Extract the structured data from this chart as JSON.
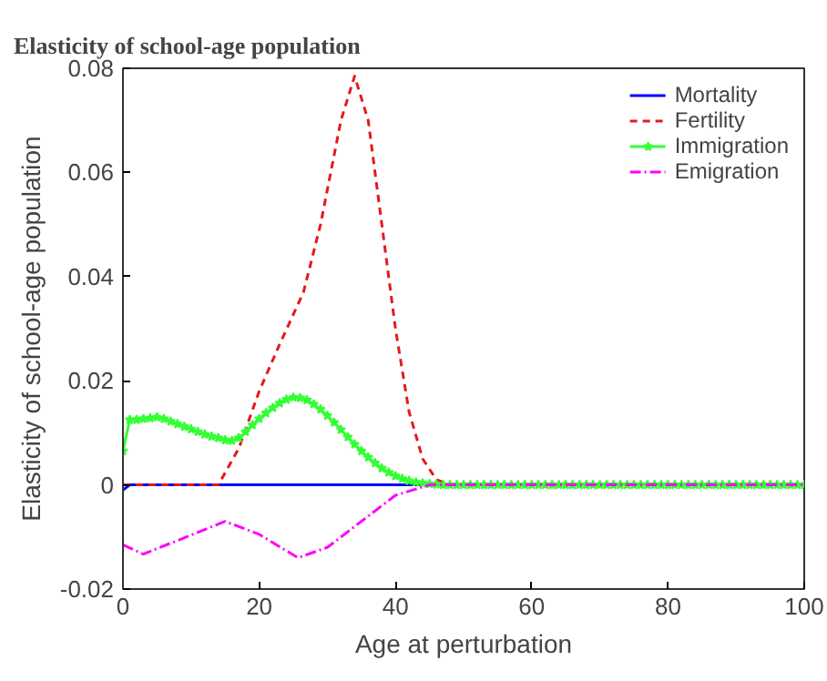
{
  "chart_data": {
    "type": "line",
    "title": "Elasticity of school-age population",
    "xlabel": "Age at perturbation",
    "ylabel": "Elasticity of school-age population",
    "xlim": [
      0,
      100
    ],
    "ylim": [
      -0.02,
      0.08
    ],
    "xticks": [
      0,
      20,
      40,
      60,
      80,
      100
    ],
    "yticks": [
      -0.02,
      0,
      0.02,
      0.04,
      0.06,
      0.08
    ],
    "grid": false,
    "legend": "top right",
    "series": [
      {
        "name": "Mortality",
        "color": "#0000ff",
        "line_style": "solid",
        "marker": "none",
        "x": [
          0,
          1,
          100
        ],
        "values": [
          -0.001,
          0,
          0
        ]
      },
      {
        "name": "Fertility",
        "color": "#e31a1c",
        "line_style": "dashed",
        "marker": "none",
        "x": [
          0,
          14,
          17,
          20,
          23,
          26.5,
          29,
          32,
          34,
          36,
          38,
          40,
          42,
          44,
          46,
          48,
          100
        ],
        "values": [
          0,
          0,
          0.007,
          0.018,
          0.027,
          0.037,
          0.05,
          0.07,
          0.0785,
          0.07,
          0.05,
          0.03,
          0.014,
          0.005,
          0.001,
          0,
          0
        ]
      },
      {
        "name": "Immigration",
        "color": "#33ff33",
        "line_style": "solid",
        "marker": "star",
        "x": [
          0,
          1,
          2,
          3,
          4,
          5,
          6,
          7,
          8,
          9,
          10,
          11,
          12,
          13,
          14,
          15,
          16,
          17,
          18,
          19,
          20,
          21,
          22,
          23,
          24,
          25,
          26,
          27,
          28,
          29,
          30,
          31,
          32,
          33,
          34,
          35,
          36,
          37,
          38,
          39,
          40,
          41,
          42,
          43,
          44,
          45,
          46,
          47,
          48,
          49,
          50,
          51,
          52,
          53,
          54,
          55,
          56,
          57,
          58,
          59,
          60,
          61,
          62,
          63,
          64,
          65,
          66,
          67,
          68,
          69,
          70,
          71,
          72,
          73,
          74,
          75,
          76,
          77,
          78,
          79,
          80,
          81,
          82,
          83,
          84,
          85,
          86,
          87,
          88,
          89,
          90,
          91,
          92,
          93,
          94,
          95,
          96,
          97,
          98,
          99,
          100
        ],
        "values": [
          0.0065,
          0.0125,
          0.0125,
          0.0127,
          0.0128,
          0.013,
          0.0127,
          0.0122,
          0.0117,
          0.0112,
          0.0107,
          0.0102,
          0.0097,
          0.0093,
          0.009,
          0.0086,
          0.0085,
          0.009,
          0.0102,
          0.0115,
          0.0127,
          0.0138,
          0.0148,
          0.0157,
          0.0164,
          0.0168,
          0.0167,
          0.0163,
          0.0155,
          0.0145,
          0.0133,
          0.012,
          0.0106,
          0.0092,
          0.0078,
          0.0065,
          0.0053,
          0.0042,
          0.0032,
          0.0024,
          0.0017,
          0.0012,
          0.0008,
          0.0005,
          0.0003,
          0.0002,
          0.0001,
          0,
          0,
          0,
          0,
          0,
          0,
          0,
          0,
          0,
          0,
          0,
          0,
          0,
          0,
          0,
          0,
          0,
          0,
          0,
          0,
          0,
          0,
          0,
          0,
          0,
          0,
          0,
          0,
          0,
          0,
          0,
          0,
          0,
          0,
          0,
          0,
          0,
          0,
          0,
          0,
          0,
          0,
          0,
          0,
          0,
          0,
          0,
          0,
          0,
          0,
          0,
          0,
          0,
          0
        ]
      },
      {
        "name": "Emigration",
        "color": "#ff00ff",
        "line_style": "dashdot",
        "marker": "none",
        "x": [
          0,
          3,
          15,
          20,
          25.7,
          30,
          35,
          40,
          45,
          100
        ],
        "values": [
          -0.0115,
          -0.0133,
          -0.007,
          -0.0095,
          -0.014,
          -0.012,
          -0.007,
          -0.002,
          0,
          0
        ]
      }
    ]
  }
}
